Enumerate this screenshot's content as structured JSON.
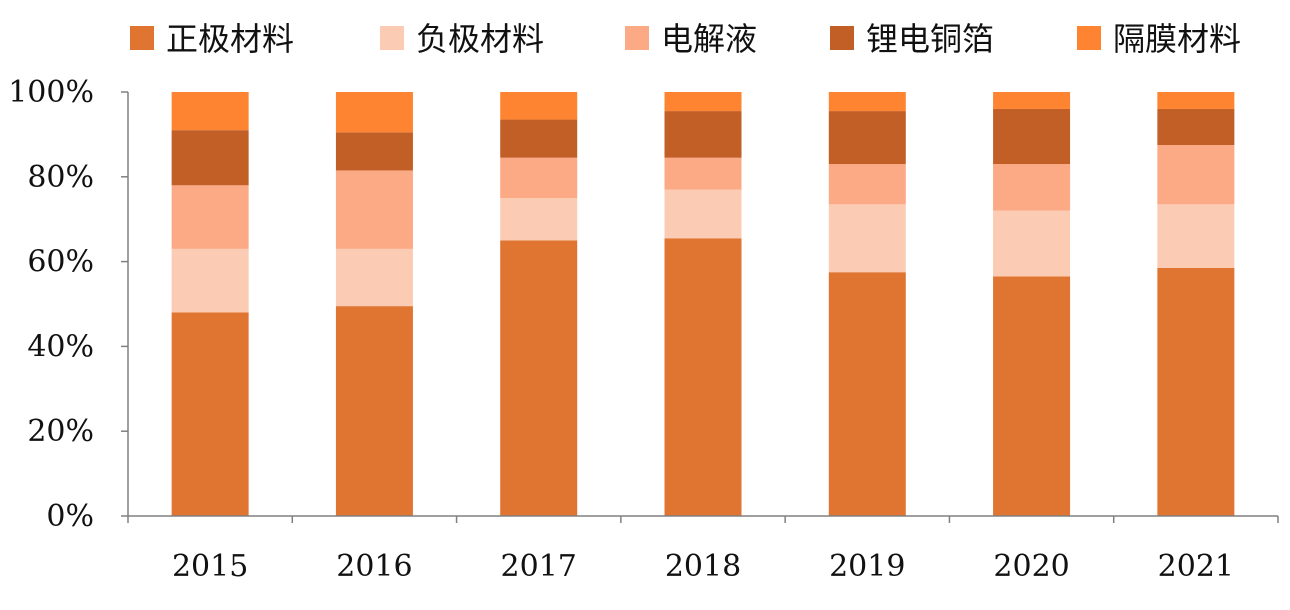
{
  "chart_data": {
    "type": "bar",
    "stacked": true,
    "categories": [
      "2015",
      "2016",
      "2017",
      "2018",
      "2019",
      "2020",
      "2021"
    ],
    "yticks": [
      "0%",
      "20%",
      "40%",
      "60%",
      "80%",
      "100%"
    ],
    "ylim": [
      0,
      100
    ],
    "legend_position": "top",
    "grid": false,
    "series": [
      {
        "name": "正极材料",
        "color": "#E07532",
        "values": [
          48,
          49.5,
          65,
          65.5,
          57.5,
          56.5,
          58.5
        ]
      },
      {
        "name": "负极材料",
        "color": "#FBCBB3",
        "values": [
          15,
          13.5,
          10,
          11.5,
          16,
          15.5,
          15
        ]
      },
      {
        "name": "电解液",
        "color": "#FCA985",
        "values": [
          15,
          18.5,
          9.5,
          7.5,
          9.5,
          11,
          14
        ]
      },
      {
        "name": "锂电铜箔",
        "color": "#C15F27",
        "values": [
          13,
          9,
          9,
          11,
          12.5,
          13,
          8.5
        ]
      },
      {
        "name": "隔膜材料",
        "color": "#FE8432",
        "values": [
          9,
          9.5,
          6.5,
          4.5,
          4.5,
          4,
          4
        ]
      }
    ]
  }
}
